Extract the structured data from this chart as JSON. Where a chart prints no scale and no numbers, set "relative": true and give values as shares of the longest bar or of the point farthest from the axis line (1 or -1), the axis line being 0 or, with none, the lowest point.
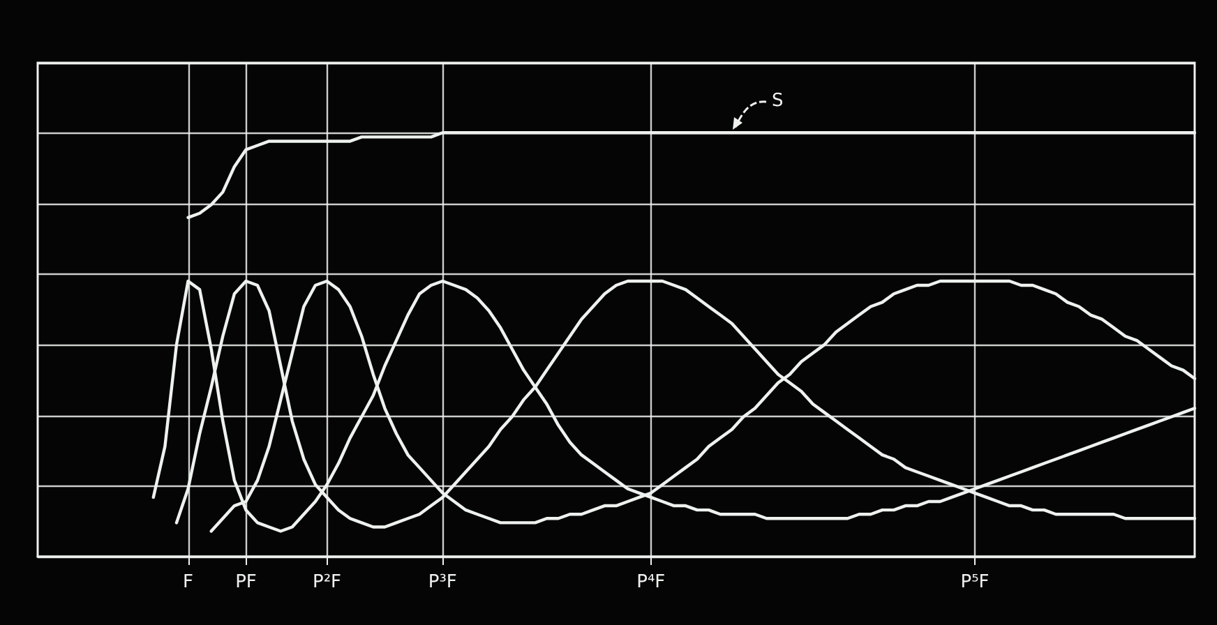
{
  "chart_data": {
    "type": "line",
    "relative": true,
    "grid": true,
    "marker": "none",
    "line_style": "solid",
    "categories": [
      null,
      null,
      null,
      null,
      null,
      null,
      null,
      null,
      null,
      null,
      null,
      null,
      null,
      "F",
      null,
      null,
      null,
      null,
      "PF",
      null,
      null,
      null,
      null,
      null,
      null,
      "P²F",
      null,
      null,
      null,
      null,
      null,
      null,
      null,
      null,
      null,
      "P³F",
      null,
      null,
      null,
      null,
      null,
      null,
      null,
      null,
      null,
      null,
      null,
      null,
      null,
      null,
      null,
      null,
      null,
      "P⁴F",
      null,
      null,
      null,
      null,
      null,
      null,
      null,
      null,
      null,
      null,
      null,
      null,
      null,
      null,
      null,
      null,
      null,
      null,
      null,
      null,
      null,
      null,
      null,
      null,
      null,
      null,
      null,
      "P⁵F",
      null,
      null,
      null,
      null,
      null,
      null,
      null,
      null,
      null,
      null,
      null,
      null,
      null,
      null,
      null,
      null,
      null,
      null,
      null
    ],
    "series": [
      {
        "color": "#eef2ee",
        "values": [
          null,
          null,
          null,
          null,
          null,
          null,
          null,
          null,
          null,
          null,
          null,
          null,
          null,
          0.8,
          0.81,
          0.83,
          0.86,
          0.92,
          0.96,
          0.97,
          0.98,
          0.98,
          0.98,
          0.98,
          0.98,
          0.98,
          0.98,
          0.98,
          0.99,
          0.99,
          0.99,
          0.99,
          0.99,
          0.99,
          0.99,
          1,
          1,
          1,
          1,
          1,
          1,
          1,
          1,
          1,
          1,
          1,
          1,
          1,
          1,
          1,
          1,
          1,
          1,
          1,
          1,
          1,
          1,
          1,
          1,
          1,
          1,
          1,
          1,
          1,
          1,
          1,
          1,
          1,
          1,
          1,
          1,
          1,
          1,
          1,
          1,
          1,
          1,
          1,
          1,
          1,
          1,
          1,
          1,
          1,
          1,
          1,
          1,
          1,
          1,
          1,
          1,
          1,
          1,
          1,
          1,
          1,
          1,
          1,
          1,
          1,
          1
        ]
      },
      {
        "color": "#eef2ee",
        "values": [
          null,
          null,
          null,
          null,
          null,
          null,
          null,
          null,
          null,
          null,
          0.14,
          0.26,
          0.5,
          0.65,
          0.63,
          0.49,
          0.32,
          0.18,
          0.11,
          0.08,
          0.07,
          0.06,
          0.07,
          0.1,
          0.13,
          0.17,
          0.22,
          0.28,
          0.33,
          0.38,
          0.45,
          0.51,
          0.57,
          0.62,
          0.64,
          0.65,
          0.64,
          0.63,
          0.61,
          0.58,
          0.54,
          0.49,
          0.44,
          0.4,
          0.36,
          0.31,
          0.27,
          0.24,
          0.22,
          0.2,
          0.18,
          0.16,
          0.15,
          0.14,
          0.13,
          0.12,
          0.12,
          0.11,
          0.11,
          0.1,
          0.1,
          0.1,
          0.1,
          0.09,
          0.09,
          0.09,
          0.09,
          0.09,
          0.09,
          0.09,
          0.09,
          0.1,
          0.1,
          0.11,
          0.11,
          0.12,
          0.12,
          0.13,
          0.13,
          0.14,
          0.15,
          0.16,
          0.17,
          0.18,
          0.19,
          0.2,
          0.21,
          0.22,
          0.23,
          0.24,
          0.25,
          0.26,
          0.27,
          0.28,
          0.29,
          0.3,
          0.31,
          0.32,
          0.33,
          0.34,
          0.35
        ]
      },
      {
        "color": "#eef2ee",
        "values": [
          null,
          null,
          null,
          null,
          null,
          null,
          null,
          null,
          null,
          null,
          null,
          null,
          0.08,
          0.16,
          0.29,
          0.4,
          0.52,
          0.62,
          0.65,
          0.64,
          0.58,
          0.45,
          0.32,
          0.23,
          0.17,
          0.14,
          0.11,
          0.09,
          0.08,
          0.07,
          0.07,
          0.08,
          0.09,
          0.1,
          0.12,
          0.14,
          0.17,
          0.2,
          0.23,
          0.26,
          0.3,
          0.33,
          0.37,
          0.4,
          0.44,
          0.48,
          0.52,
          0.56,
          0.59,
          0.62,
          0.64,
          0.65,
          0.65,
          0.65,
          0.65,
          0.64,
          0.63,
          0.61,
          0.59,
          0.57,
          0.55,
          0.52,
          0.49,
          0.46,
          0.43,
          0.41,
          0.39,
          0.36,
          0.34,
          0.32,
          0.3,
          0.28,
          0.26,
          0.24,
          0.23,
          0.21,
          0.2,
          0.19,
          0.18,
          0.17,
          0.16,
          0.15,
          0.14,
          0.13,
          0.12,
          0.12,
          0.11,
          0.11,
          0.1,
          0.1,
          0.1,
          0.1,
          0.1,
          0.1,
          0.09,
          0.09,
          0.09,
          0.09,
          0.09,
          0.09,
          0.09
        ]
      },
      {
        "color": "#eef2ee",
        "values": [
          null,
          null,
          null,
          null,
          null,
          null,
          null,
          null,
          null,
          null,
          null,
          null,
          null,
          null,
          null,
          0.06,
          0.09,
          0.12,
          0.13,
          0.18,
          0.26,
          0.37,
          0.48,
          0.59,
          0.64,
          0.65,
          0.63,
          0.59,
          0.52,
          0.43,
          0.35,
          0.29,
          0.24,
          0.21,
          0.18,
          0.15,
          0.13,
          0.11,
          0.1,
          0.09,
          0.08,
          0.08,
          0.08,
          0.08,
          0.09,
          0.09,
          0.1,
          0.1,
          0.11,
          0.12,
          0.12,
          0.13,
          0.14,
          0.15,
          0.17,
          0.19,
          0.21,
          0.23,
          0.26,
          0.28,
          0.3,
          0.33,
          0.35,
          0.38,
          0.41,
          0.43,
          0.46,
          0.48,
          0.5,
          0.53,
          0.55,
          0.57,
          0.59,
          0.6,
          0.62,
          0.63,
          0.64,
          0.64,
          0.65,
          0.65,
          0.65,
          0.65,
          0.65,
          0.65,
          0.65,
          0.64,
          0.64,
          0.63,
          0.62,
          0.6,
          0.59,
          0.57,
          0.56,
          0.54,
          0.52,
          0.51,
          0.49,
          0.47,
          0.45,
          0.44,
          0.42
        ]
      }
    ],
    "annotations": [
      "S"
    ]
  }
}
